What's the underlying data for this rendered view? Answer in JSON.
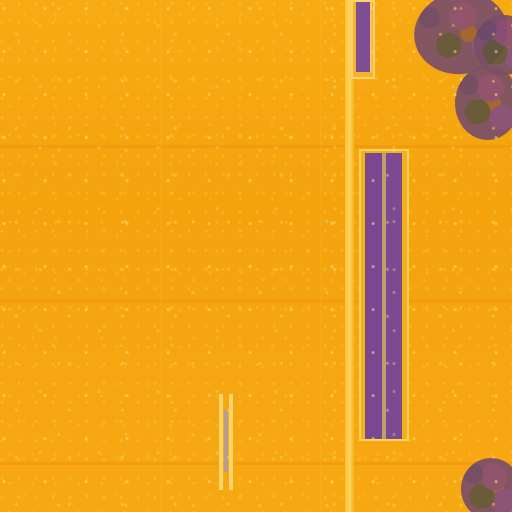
{
  "scene": {
    "type": "aerial-false-color-field",
    "colors": {
      "field": "#f5a20f",
      "field_highlight": "#ffd36b",
      "panel_purple": "#7c4791",
      "tree_dark": "#6c486b"
    },
    "icons": {
      "vegetation": "tree-canopy-icon",
      "panel": "solar-panel-icon"
    }
  }
}
